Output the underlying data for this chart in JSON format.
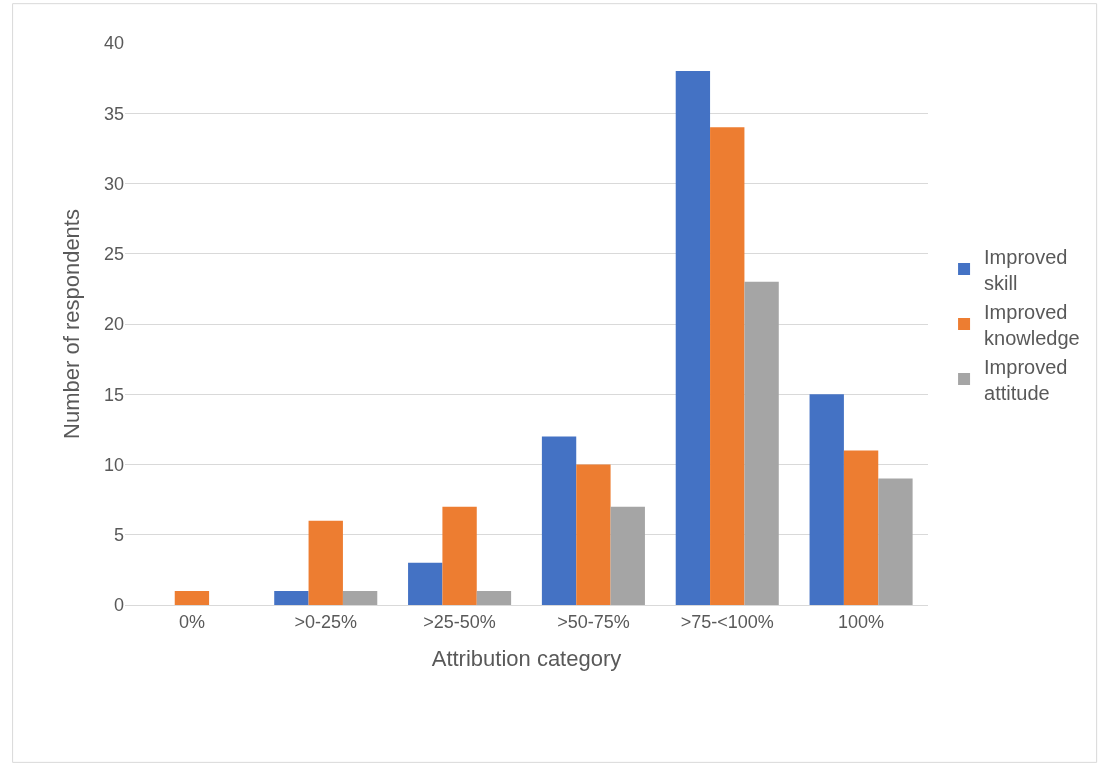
{
  "chart_data": {
    "type": "bar",
    "xlabel": "Attribution category",
    "ylabel": "Number of respondents",
    "categories": [
      "0%",
      ">0-25%",
      ">25-50%",
      ">50-75%",
      ">75-<100%",
      "100%"
    ],
    "series": [
      {
        "name": "Improved skill",
        "color": "#4472c4",
        "values": [
          0,
          1,
          3,
          12,
          38,
          15
        ]
      },
      {
        "name": "Improved knowledge",
        "color": "#ed7d31",
        "values": [
          1,
          6,
          7,
          10,
          34,
          11
        ]
      },
      {
        "name": "Improved attitude",
        "color": "#a5a5a5",
        "values": [
          0,
          1,
          1,
          7,
          23,
          9
        ]
      }
    ],
    "ylim": [
      0,
      40
    ],
    "yticks": [
      0,
      5,
      10,
      15,
      20,
      25,
      30,
      35,
      40
    ],
    "grid": "y",
    "legend": "right"
  }
}
